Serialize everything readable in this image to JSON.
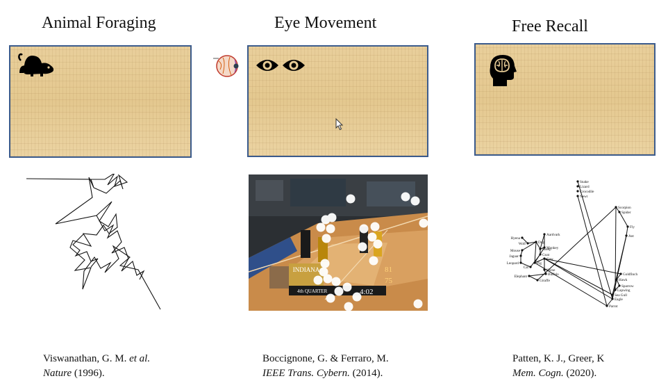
{
  "columns": [
    {
      "title": "Animal Foraging",
      "citation_authors": "Viswanathan, G. M.",
      "citation_etal": "et al.",
      "citation_journal": "Nature",
      "citation_year": "(1996)."
    },
    {
      "title": "Eye Movement",
      "citation_authors": "Boccignone, G. & Ferraro, M.",
      "citation_journal": "IEEE Trans. Cybern.",
      "citation_year": "(2014)."
    },
    {
      "title": "Free Recall",
      "citation_authors": "Patten, K. J., Greer, K",
      "citation_journal": "Mem. Cogn.",
      "citation_year": "(2020)."
    }
  ],
  "icons": {
    "foraging": "rat-icon",
    "eye_anatomy": "eyeball-icon",
    "eyes": "eyes-icon",
    "recall": "brain-head-icon",
    "cursor": "mouse-cursor-icon"
  },
  "colors": {
    "panel_border": "#3b5b8c",
    "panel_fill": "#e6cb95"
  },
  "recall_network": {
    "words": [
      "Snake",
      "Lizard",
      "Crocodile",
      "Newt",
      "Scorpion",
      "Spider",
      "Fly",
      "Ant",
      "Aardvark",
      "Monkey",
      "Hyena",
      "Wolf",
      "Dog",
      "Mouse",
      "Jaguar",
      "Leopard",
      "Cat",
      "Pig",
      "Cow",
      "Horse",
      "Buffalo",
      "Elephant",
      "Giraffe",
      "Goldfinch",
      "Hawk",
      "Sparrow",
      "Lapwing",
      "Sea Gull",
      "Eagle",
      "Parrot",
      "Goat",
      "Sheep"
    ]
  },
  "scoreboard": {
    "team": "INDIANA",
    "time": "4:02",
    "quarter": "4th QUARTER",
    "score_a": "81",
    "score_b": "75"
  }
}
